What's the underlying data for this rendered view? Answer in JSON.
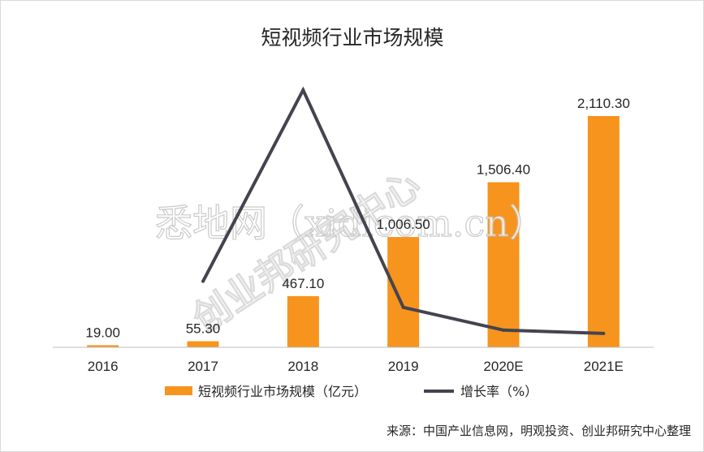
{
  "chart_data": {
    "type": "bar",
    "title": "短视频行业市场规模",
    "categories": [
      "2016",
      "2017",
      "2018",
      "2019",
      "2020E",
      "2021E"
    ],
    "series": [
      {
        "name": "短视频行业市场规模（亿元）",
        "type": "bar",
        "color": "#f7941d",
        "values": [
          19.0,
          55.3,
          467.1,
          1006.5,
          1506.4,
          2110.3
        ],
        "labels": [
          "19.00",
          "55.30",
          "467.10",
          "1,006.50",
          "1,506.40",
          "2,110.30"
        ]
      },
      {
        "name": "增长率（%）",
        "type": "line",
        "color": "#44444f",
        "values": [
          null,
          191.1,
          744.7,
          115.5,
          49.7,
          40.1
        ]
      }
    ],
    "ylim": [
      0,
      2110.3
    ],
    "y2lim": [
      0,
      744.7
    ],
    "grid": false,
    "legend": "bottom"
  },
  "source": "来源：中国产业信息网，明观投资、创业邦研究中心整理",
  "watermark": {
    "main": "悉地网（xidicom.cn）",
    "diagonal": "创业邦研究中心"
  }
}
